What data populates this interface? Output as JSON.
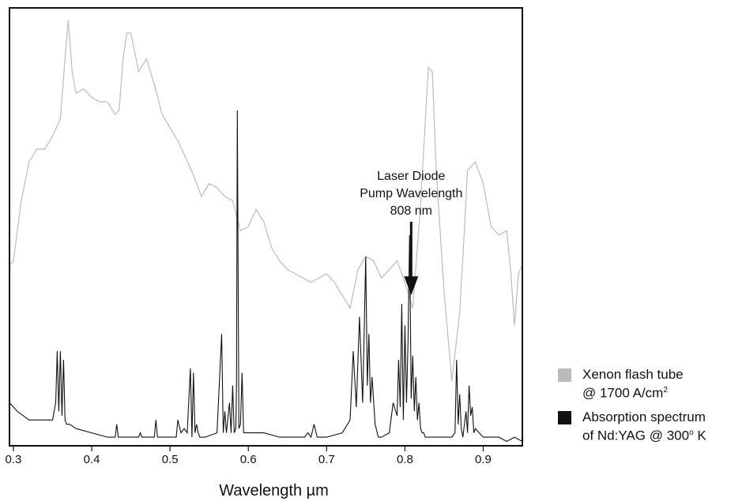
{
  "chart_data": {
    "type": "line",
    "title": "",
    "xlabel": "Wavelength µm",
    "ylabel": "",
    "xlim": [
      0.295,
      0.95
    ],
    "ylim": [
      0,
      1
    ],
    "grid": false,
    "x_ticks": [
      0.3,
      0.4,
      0.5,
      0.6,
      0.7,
      0.8,
      0.9
    ],
    "x_tick_labels": [
      "0.3",
      "0.4",
      "0.5",
      "0.6",
      "0.7",
      "0.8",
      "0.9"
    ],
    "legend_position": "right",
    "annotation": {
      "lines": [
        "Laser Diode",
        "Pump Wavelength",
        "808 nm"
      ],
      "x": 0.808,
      "arrow_tip_y": 0.35
    },
    "series": [
      {
        "legend_name": "Xenon flash tube",
        "legend_sub": "@ 1700 A/cm",
        "legend_sup": "2",
        "color": "#bbbbbb",
        "x": [
          0.295,
          0.3,
          0.31,
          0.32,
          0.33,
          0.34,
          0.35,
          0.36,
          0.365,
          0.37,
          0.375,
          0.38,
          0.39,
          0.4,
          0.41,
          0.42,
          0.43,
          0.435,
          0.44,
          0.445,
          0.45,
          0.46,
          0.47,
          0.48,
          0.49,
          0.5,
          0.51,
          0.52,
          0.53,
          0.54,
          0.55,
          0.56,
          0.57,
          0.58,
          0.59,
          0.6,
          0.61,
          0.62,
          0.63,
          0.64,
          0.65,
          0.66,
          0.67,
          0.68,
          0.69,
          0.7,
          0.71,
          0.72,
          0.73,
          0.74,
          0.75,
          0.76,
          0.77,
          0.78,
          0.79,
          0.8,
          0.81,
          0.82,
          0.825,
          0.83,
          0.835,
          0.84,
          0.85,
          0.86,
          0.87,
          0.875,
          0.88,
          0.89,
          0.9,
          0.91,
          0.92,
          0.93,
          0.935,
          0.94,
          0.945,
          0.95
        ],
        "y": [
          0.42,
          0.43,
          0.57,
          0.66,
          0.69,
          0.69,
          0.72,
          0.76,
          0.88,
          0.99,
          0.87,
          0.82,
          0.83,
          0.81,
          0.8,
          0.8,
          0.77,
          0.78,
          0.9,
          0.96,
          0.96,
          0.87,
          0.9,
          0.84,
          0.77,
          0.74,
          0.71,
          0.67,
          0.63,
          0.58,
          0.61,
          0.6,
          0.58,
          0.57,
          0.5,
          0.51,
          0.55,
          0.52,
          0.46,
          0.43,
          0.41,
          0.4,
          0.39,
          0.38,
          0.39,
          0.4,
          0.38,
          0.35,
          0.32,
          0.41,
          0.44,
          0.43,
          0.39,
          0.41,
          0.43,
          0.38,
          0.32,
          0.56,
          0.72,
          0.88,
          0.87,
          0.64,
          0.36,
          0.15,
          0.31,
          0.47,
          0.64,
          0.66,
          0.61,
          0.51,
          0.49,
          0.5,
          0.41,
          0.28,
          0.4,
          0.42
        ]
      },
      {
        "legend_name": "Absorption spectrum",
        "legend_sub": "of Nd:YAG @ 300",
        "legend_sup": "o",
        "legend_tail": " K",
        "color": "#111111",
        "x": [
          0.295,
          0.305,
          0.32,
          0.34,
          0.35,
          0.354,
          0.356,
          0.358,
          0.36,
          0.362,
          0.364,
          0.366,
          0.368,
          0.372,
          0.38,
          0.4,
          0.42,
          0.43,
          0.432,
          0.434,
          0.44,
          0.46,
          0.462,
          0.464,
          0.47,
          0.48,
          0.482,
          0.484,
          0.49,
          0.5,
          0.508,
          0.51,
          0.514,
          0.518,
          0.522,
          0.526,
          0.528,
          0.53,
          0.532,
          0.534,
          0.536,
          0.538,
          0.545,
          0.56,
          0.566,
          0.568,
          0.57,
          0.572,
          0.576,
          0.578,
          0.58,
          0.582,
          0.584,
          0.585,
          0.586,
          0.588,
          0.59,
          0.592,
          0.594,
          0.596,
          0.6,
          0.62,
          0.64,
          0.66,
          0.672,
          0.676,
          0.68,
          0.684,
          0.688,
          0.7,
          0.72,
          0.73,
          0.734,
          0.738,
          0.742,
          0.746,
          0.748,
          0.75,
          0.752,
          0.754,
          0.756,
          0.758,
          0.762,
          0.766,
          0.77,
          0.78,
          0.785,
          0.79,
          0.792,
          0.794,
          0.796,
          0.798,
          0.8,
          0.802,
          0.804,
          0.806,
          0.808,
          0.81,
          0.812,
          0.814,
          0.816,
          0.818,
          0.82,
          0.822,
          0.824,
          0.826,
          0.83,
          0.84,
          0.85,
          0.86,
          0.864,
          0.866,
          0.868,
          0.87,
          0.872,
          0.874,
          0.878,
          0.88,
          0.882,
          0.884,
          0.886,
          0.888,
          0.89,
          0.9,
          0.91,
          0.92,
          0.93,
          0.94,
          0.95
        ],
        "y": [
          0.1,
          0.08,
          0.06,
          0.06,
          0.06,
          0.1,
          0.22,
          0.08,
          0.22,
          0.07,
          0.2,
          0.06,
          0.05,
          0.05,
          0.04,
          0.03,
          0.02,
          0.02,
          0.05,
          0.02,
          0.02,
          0.02,
          0.03,
          0.02,
          0.02,
          0.02,
          0.06,
          0.02,
          0.02,
          0.02,
          0.02,
          0.06,
          0.03,
          0.04,
          0.03,
          0.18,
          0.02,
          0.17,
          0.03,
          0.05,
          0.03,
          0.02,
          0.02,
          0.03,
          0.26,
          0.03,
          0.08,
          0.03,
          0.1,
          0.03,
          0.14,
          0.03,
          0.04,
          0.15,
          0.78,
          0.04,
          0.05,
          0.17,
          0.03,
          0.03,
          0.03,
          0.03,
          0.02,
          0.02,
          0.02,
          0.03,
          0.02,
          0.05,
          0.02,
          0.02,
          0.03,
          0.06,
          0.22,
          0.09,
          0.3,
          0.1,
          0.27,
          0.44,
          0.14,
          0.26,
          0.1,
          0.16,
          0.05,
          0.02,
          0.02,
          0.03,
          0.1,
          0.07,
          0.2,
          0.09,
          0.33,
          0.06,
          0.28,
          0.1,
          0.24,
          0.49,
          0.11,
          0.21,
          0.08,
          0.16,
          0.06,
          0.1,
          0.04,
          0.03,
          0.03,
          0.02,
          0.02,
          0.02,
          0.02,
          0.02,
          0.03,
          0.2,
          0.05,
          0.12,
          0.04,
          0.02,
          0.08,
          0.03,
          0.14,
          0.07,
          0.09,
          0.03,
          0.04,
          0.02,
          0.02,
          0.02,
          0.01,
          0.02,
          0.01
        ]
      }
    ]
  }
}
